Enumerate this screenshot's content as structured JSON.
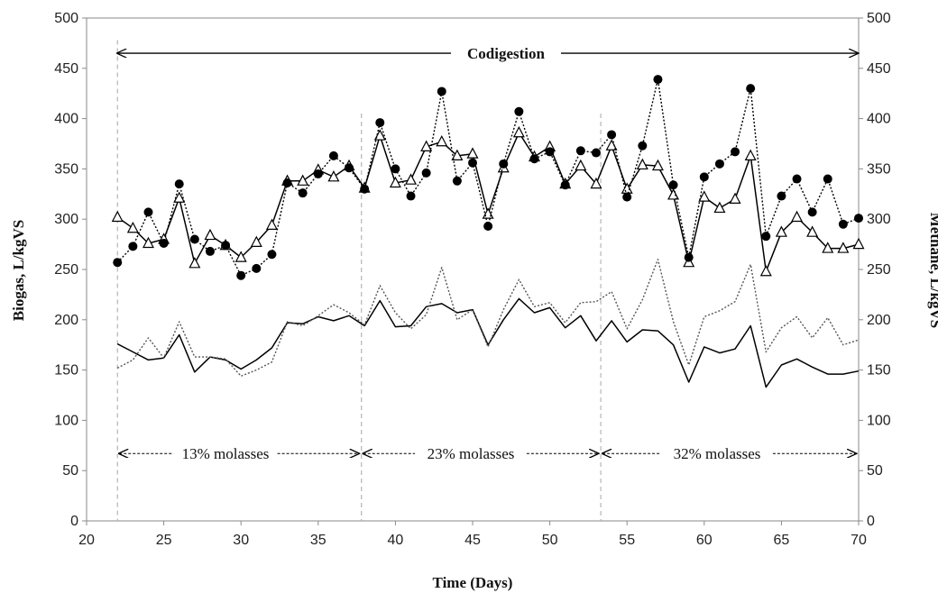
{
  "chart_data": {
    "type": "line",
    "title": "",
    "xlabel": "Time (Days)",
    "ylabel_left": "Biogas, L/kgVS",
    "ylabel_right": "Methane, L/kgVS",
    "xlim": [
      20,
      70
    ],
    "ylim": [
      0,
      500
    ],
    "x_ticks": [
      20,
      25,
      30,
      35,
      40,
      45,
      50,
      55,
      60,
      65,
      70
    ],
    "y_ticks": [
      0,
      50,
      100,
      150,
      200,
      250,
      300,
      350,
      400,
      450,
      500
    ],
    "grid": false,
    "legend": "none",
    "x": [
      22,
      23,
      24,
      25,
      26,
      27,
      28,
      29,
      30,
      31,
      32,
      33,
      34,
      35,
      36,
      37,
      38,
      39,
      40,
      41,
      42,
      43,
      44,
      45,
      46,
      47,
      48,
      49,
      50,
      51,
      52,
      53,
      54,
      55,
      56,
      57,
      58,
      59,
      60,
      61,
      62,
      63,
      64,
      65,
      66,
      67,
      68,
      69,
      70
    ],
    "series": [
      {
        "style": "solid line, open triangle markers",
        "color": "#000000",
        "values": [
          302,
          291,
          276,
          280,
          321,
          256,
          284,
          274,
          262,
          277,
          294,
          338,
          338,
          349,
          342,
          353,
          331,
          383,
          336,
          339,
          372,
          377,
          363,
          365,
          305,
          351,
          386,
          362,
          372,
          335,
          353,
          335,
          373,
          330,
          354,
          353,
          324,
          257,
          322,
          311,
          320,
          363,
          248,
          287,
          302,
          287,
          271,
          271,
          275
        ]
      },
      {
        "style": "dotted line, filled circle markers",
        "color": "#000000",
        "values": [
          257,
          273,
          307,
          276,
          335,
          280,
          268,
          274,
          244,
          251,
          265,
          336,
          326,
          345,
          363,
          351,
          330,
          396,
          350,
          323,
          346,
          427,
          338,
          356,
          293,
          355,
          407,
          360,
          367,
          334,
          368,
          366,
          384,
          322,
          373,
          439,
          334,
          262,
          342,
          355,
          367,
          430,
          283,
          323,
          340,
          307,
          340,
          295,
          301
        ]
      },
      {
        "style": "solid line, no markers",
        "color": "#000000",
        "values": [
          176,
          168,
          160,
          162,
          185,
          148,
          163,
          160,
          151,
          160,
          172,
          197,
          196,
          203,
          199,
          204,
          194,
          219,
          193,
          194,
          213,
          216,
          207,
          210,
          175,
          200,
          221,
          207,
          212,
          192,
          204,
          179,
          199,
          178,
          190,
          189,
          175,
          138,
          173,
          167,
          171,
          194,
          133,
          155,
          161,
          153,
          146,
          146,
          149
        ]
      },
      {
        "style": "dotted line, no markers",
        "color": "#555555",
        "values": [
          152,
          160,
          182,
          162,
          198,
          163,
          163,
          161,
          144,
          150,
          158,
          198,
          194,
          204,
          215,
          207,
          195,
          234,
          207,
          191,
          205,
          252,
          200,
          210,
          173,
          210,
          240,
          213,
          217,
          197,
          217,
          218,
          228,
          191,
          220,
          260,
          198,
          155,
          203,
          209,
          218,
          255,
          168,
          192,
          203,
          182,
          202,
          175,
          180
        ]
      }
    ],
    "annotations": {
      "codigestion": "Codigestion",
      "phase1": "13% molasses",
      "phase2": "23%  molasses",
      "phase3": "32%  molasses"
    },
    "phase_boundaries": [
      22,
      37.8,
      53.3,
      70
    ]
  }
}
